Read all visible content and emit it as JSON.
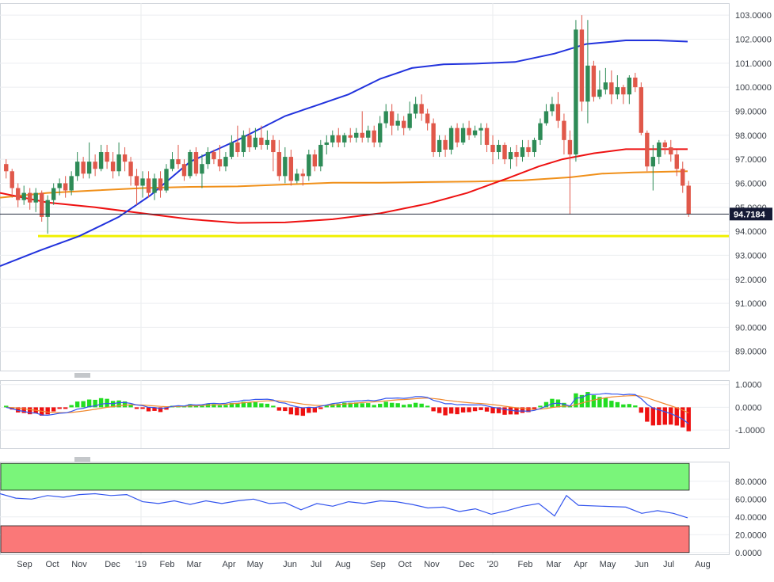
{
  "chart_data": {
    "type": "candlestick",
    "main_panel": {
      "y_ticks": [
        "103.0000",
        "102.0000",
        "101.0000",
        "100.0000",
        "99.0000",
        "98.0000",
        "97.0000",
        "96.0000",
        "95.0000",
        "94.0000",
        "93.0000",
        "92.0000",
        "91.0000",
        "90.0000",
        "89.0000"
      ],
      "ylim": [
        88.2,
        103.5
      ],
      "last_price_label": "94.7184",
      "last_price": 94.7184,
      "support_level": 93.8,
      "candles": [
        [
          96.8,
          96.5,
          97.0,
          96.2
        ],
        [
          96.5,
          95.8,
          96.6,
          95.4
        ],
        [
          95.8,
          95.3,
          96.0,
          95.0
        ],
        [
          95.3,
          95.6,
          95.9,
          95.1
        ],
        [
          95.6,
          95.2,
          95.8,
          94.9
        ],
        [
          95.2,
          95.6,
          95.8,
          94.8
        ],
        [
          95.6,
          94.6,
          95.7,
          94.4
        ],
        [
          94.6,
          95.3,
          95.5,
          93.9
        ],
        [
          95.3,
          95.8,
          96.0,
          95.1
        ],
        [
          95.8,
          96.0,
          96.2,
          95.5
        ],
        [
          96.0,
          95.7,
          96.3,
          95.4
        ],
        [
          95.7,
          96.3,
          96.5,
          95.5
        ],
        [
          96.3,
          96.9,
          97.3,
          96.1
        ],
        [
          96.9,
          96.4,
          97.1,
          96.2
        ],
        [
          96.4,
          96.9,
          97.7,
          96.2
        ],
        [
          96.9,
          96.6,
          97.2,
          96.3
        ],
        [
          96.6,
          97.3,
          97.6,
          96.5
        ],
        [
          97.3,
          96.9,
          97.6,
          96.6
        ],
        [
          96.9,
          96.5,
          97.3,
          96.2
        ],
        [
          96.5,
          97.2,
          97.7,
          96.3
        ],
        [
          97.2,
          96.9,
          97.5,
          96.5
        ],
        [
          96.9,
          96.3,
          97.1,
          95.9
        ],
        [
          96.3,
          95.9,
          96.6,
          95.1
        ],
        [
          95.9,
          96.2,
          96.5,
          95.4
        ],
        [
          96.2,
          95.6,
          96.5,
          95.4
        ],
        [
          95.6,
          96.2,
          96.4,
          95.3
        ],
        [
          96.2,
          95.7,
          96.5,
          95.4
        ],
        [
          95.7,
          96.6,
          96.8,
          95.6
        ],
        [
          96.6,
          97.0,
          97.3,
          96.5
        ],
        [
          97.0,
          96.8,
          97.6,
          96.6
        ],
        [
          96.8,
          96.3,
          97.0,
          96.1
        ],
        [
          96.3,
          97.3,
          97.4,
          96.2
        ],
        [
          97.3,
          96.4,
          97.5,
          96.3
        ],
        [
          96.4,
          96.8,
          97.2,
          95.8
        ],
        [
          96.8,
          97.3,
          97.5,
          96.6
        ],
        [
          97.3,
          97.0,
          97.4,
          96.8
        ],
        [
          97.0,
          96.7,
          97.6,
          96.5
        ],
        [
          96.7,
          97.1,
          97.3,
          96.5
        ],
        [
          97.1,
          97.7,
          98.0,
          97.0
        ],
        [
          97.7,
          97.3,
          98.4,
          97.1
        ],
        [
          97.3,
          98.0,
          98.2,
          97.1
        ],
        [
          98.0,
          97.5,
          98.3,
          97.3
        ],
        [
          97.5,
          97.9,
          98.3,
          97.4
        ],
        [
          97.9,
          97.6,
          98.4,
          97.4
        ],
        [
          97.6,
          97.8,
          98.2,
          97.4
        ],
        [
          97.8,
          97.3,
          98.0,
          96.5
        ],
        [
          97.3,
          96.3,
          97.8,
          96.1
        ],
        [
          96.3,
          97.1,
          97.5,
          96.0
        ],
        [
          97.1,
          96.1,
          97.4,
          95.9
        ],
        [
          96.1,
          96.4,
          96.6,
          96.0
        ],
        [
          96.4,
          96.3,
          96.6,
          95.9
        ],
        [
          96.3,
          97.2,
          97.4,
          96.1
        ],
        [
          97.2,
          96.7,
          97.4,
          96.5
        ],
        [
          96.7,
          97.6,
          97.8,
          96.5
        ],
        [
          97.6,
          97.7,
          98.0,
          97.2
        ],
        [
          97.7,
          98.0,
          98.2,
          97.5
        ],
        [
          98.0,
          97.7,
          98.3,
          97.5
        ],
        [
          97.7,
          98.0,
          98.1,
          97.5
        ],
        [
          98.0,
          97.9,
          98.3,
          97.7
        ],
        [
          97.9,
          98.1,
          98.3,
          97.7
        ],
        [
          98.1,
          97.9,
          99.0,
          97.7
        ],
        [
          97.9,
          98.2,
          98.4,
          97.7
        ],
        [
          98.2,
          97.7,
          98.4,
          97.5
        ],
        [
          97.7,
          98.5,
          98.8,
          97.5
        ],
        [
          98.5,
          99.0,
          99.3,
          98.3
        ],
        [
          99.0,
          98.4,
          99.3,
          98.0
        ],
        [
          98.4,
          98.6,
          98.9,
          98.2
        ],
        [
          98.6,
          98.3,
          98.8,
          98.0
        ],
        [
          98.3,
          98.9,
          99.4,
          98.2
        ],
        [
          98.9,
          99.3,
          99.6,
          98.7
        ],
        [
          99.3,
          98.9,
          99.7,
          98.6
        ],
        [
          98.9,
          98.5,
          99.1,
          98.2
        ],
        [
          98.5,
          97.3,
          98.7,
          97.1
        ],
        [
          97.3,
          97.8,
          98.0,
          97.1
        ],
        [
          97.8,
          97.4,
          98.0,
          97.1
        ],
        [
          97.4,
          98.3,
          98.4,
          97.2
        ],
        [
          98.3,
          97.7,
          98.5,
          97.5
        ],
        [
          97.7,
          98.3,
          98.5,
          97.6
        ],
        [
          98.3,
          98.0,
          98.6,
          97.8
        ],
        [
          98.0,
          98.2,
          98.4,
          97.9
        ],
        [
          98.2,
          98.3,
          98.5,
          97.6
        ],
        [
          98.3,
          97.6,
          98.5,
          97.3
        ],
        [
          97.6,
          97.3,
          98.0,
          96.8
        ],
        [
          97.3,
          97.6,
          97.8,
          97.0
        ],
        [
          97.6,
          97.0,
          97.7,
          96.8
        ],
        [
          97.0,
          97.3,
          97.5,
          96.6
        ],
        [
          97.3,
          97.1,
          97.6,
          96.7
        ],
        [
          97.1,
          97.5,
          97.8,
          96.9
        ],
        [
          97.5,
          97.3,
          97.8,
          97.1
        ],
        [
          97.3,
          97.8,
          97.9,
          97.1
        ],
        [
          97.8,
          98.5,
          98.7,
          97.6
        ],
        [
          98.5,
          99.0,
          99.3,
          98.4
        ],
        [
          99.0,
          99.3,
          99.6,
          98.8
        ],
        [
          99.3,
          98.6,
          99.8,
          98.3
        ],
        [
          98.6,
          97.8,
          98.9,
          97.2
        ],
        [
          97.8,
          97.2,
          98.2,
          94.7
        ],
        [
          97.2,
          102.4,
          102.8,
          96.9
        ],
        [
          102.4,
          99.4,
          103.0,
          99.0
        ],
        [
          99.4,
          100.9,
          102.8,
          98.5
        ],
        [
          100.9,
          99.6,
          101.1,
          99.4
        ],
        [
          99.6,
          99.9,
          100.7,
          99.5
        ],
        [
          99.9,
          100.2,
          100.8,
          99.7
        ],
        [
          100.2,
          99.7,
          100.7,
          99.3
        ],
        [
          99.7,
          100.0,
          100.5,
          99.5
        ],
        [
          100.0,
          99.7,
          100.1,
          99.3
        ],
        [
          99.7,
          100.4,
          100.5,
          99.3
        ],
        [
          100.4,
          100.0,
          100.6,
          99.8
        ],
        [
          100.0,
          98.1,
          100.2,
          98.0
        ],
        [
          98.1,
          96.7,
          98.2,
          96.5
        ],
        [
          96.7,
          97.1,
          97.6,
          95.7
        ],
        [
          97.1,
          97.7,
          97.8,
          96.8
        ],
        [
          97.7,
          97.5,
          97.8,
          97.2
        ],
        [
          97.5,
          97.2,
          97.8,
          96.9
        ],
        [
          97.2,
          96.6,
          97.4,
          96.3
        ],
        [
          96.6,
          95.9,
          96.9,
          95.6
        ],
        [
          95.9,
          94.7184,
          96.1,
          94.6
        ]
      ],
      "sma_blue": [
        [
          0,
          92.55
        ],
        [
          50,
          93.2
        ],
        [
          100,
          93.8
        ],
        [
          150,
          94.6
        ],
        [
          190,
          95.5
        ],
        [
          240,
          96.9
        ],
        [
          300,
          97.8
        ],
        [
          360,
          98.8
        ],
        [
          400,
          99.25
        ],
        [
          440,
          99.7
        ],
        [
          480,
          100.35
        ],
        [
          520,
          100.8
        ],
        [
          560,
          100.95
        ],
        [
          600,
          100.98
        ],
        [
          650,
          101.05
        ],
        [
          700,
          101.4
        ],
        [
          740,
          101.8
        ],
        [
          790,
          101.95
        ],
        [
          830,
          101.95
        ],
        [
          868,
          101.9
        ]
      ],
      "sma_red": [
        [
          0,
          95.6
        ],
        [
          60,
          95.2
        ],
        [
          120,
          95.0
        ],
        [
          180,
          94.75
        ],
        [
          240,
          94.5
        ],
        [
          300,
          94.35
        ],
        [
          360,
          94.37
        ],
        [
          420,
          94.5
        ],
        [
          480,
          94.75
        ],
        [
          540,
          95.15
        ],
        [
          590,
          95.6
        ],
        [
          640,
          96.2
        ],
        [
          680,
          96.7
        ],
        [
          710,
          97.0
        ],
        [
          750,
          97.25
        ],
        [
          790,
          97.42
        ],
        [
          830,
          97.42
        ],
        [
          868,
          97.42
        ]
      ],
      "sma_orange": [
        [
          0,
          95.4
        ],
        [
          60,
          95.6
        ],
        [
          120,
          95.7
        ],
        [
          180,
          95.8
        ],
        [
          240,
          95.85
        ],
        [
          300,
          95.87
        ],
        [
          360,
          95.95
        ],
        [
          420,
          96.02
        ],
        [
          480,
          96.02
        ],
        [
          540,
          96.05
        ],
        [
          600,
          96.07
        ],
        [
          660,
          96.12
        ],
        [
          720,
          96.25
        ],
        [
          760,
          96.4
        ],
        [
          800,
          96.45
        ],
        [
          840,
          96.48
        ],
        [
          868,
          96.5
        ]
      ]
    },
    "macd_panel": {
      "y_ticks": [
        "1.0000",
        "0.0000",
        "-1.0000"
      ],
      "ylim": [
        -1.8,
        1.2
      ]
    },
    "rsi_panel": {
      "y_ticks": [
        "80.0000",
        "60.0000",
        "40.0000",
        "20.0000",
        "0.0000"
      ],
      "ylim": [
        -2,
        102
      ],
      "overbought_band": [
        70,
        100
      ],
      "oversold_band": [
        0,
        30
      ],
      "rsi_line": [
        [
          0,
          66
        ],
        [
          20,
          61
        ],
        [
          40,
          60
        ],
        [
          60,
          64
        ],
        [
          80,
          62
        ],
        [
          100,
          65
        ],
        [
          120,
          66
        ],
        [
          140,
          64
        ],
        [
          160,
          65
        ],
        [
          180,
          57
        ],
        [
          200,
          55
        ],
        [
          220,
          58
        ],
        [
          240,
          54
        ],
        [
          260,
          58
        ],
        [
          280,
          55
        ],
        [
          300,
          58
        ],
        [
          320,
          60
        ],
        [
          340,
          55
        ],
        [
          360,
          56
        ],
        [
          380,
          48
        ],
        [
          400,
          55
        ],
        [
          420,
          52
        ],
        [
          440,
          57
        ],
        [
          460,
          55
        ],
        [
          480,
          58
        ],
        [
          500,
          57
        ],
        [
          520,
          54
        ],
        [
          540,
          50
        ],
        [
          560,
          51
        ],
        [
          580,
          46
        ],
        [
          600,
          49
        ],
        [
          620,
          43
        ],
        [
          640,
          47
        ],
        [
          660,
          52
        ],
        [
          680,
          55
        ],
        [
          700,
          41
        ],
        [
          715,
          64
        ],
        [
          730,
          53
        ],
        [
          760,
          52
        ],
        [
          790,
          51
        ],
        [
          810,
          44
        ],
        [
          830,
          47
        ],
        [
          850,
          44
        ],
        [
          868,
          39
        ]
      ]
    },
    "x_labels": [
      "Sep",
      "Oct",
      "Nov",
      "Dec",
      "'19",
      "Feb",
      "Mar",
      "Apr",
      "May",
      "Jun",
      "Jul",
      "Aug",
      "Sep",
      "Oct",
      "Nov",
      "Dec",
      "'20",
      "Feb",
      "Mar",
      "Apr",
      "May",
      "Jun",
      "Jul",
      "Aug"
    ],
    "colors": {
      "up": "#2e8b57",
      "down": "#e0584a",
      "sma_blue": "#2233dd",
      "sma_red": "#ee1111",
      "sma_orange": "#f0901a",
      "support": "#f0f000",
      "last_label_bg": "#151a35",
      "overbought": "#7af57a",
      "oversold": "#fa7878",
      "macd_pos": "#22dd22",
      "macd_neg": "#ee1111",
      "macd_line": "#3355ee",
      "signal_line": "#f08a30"
    }
  }
}
